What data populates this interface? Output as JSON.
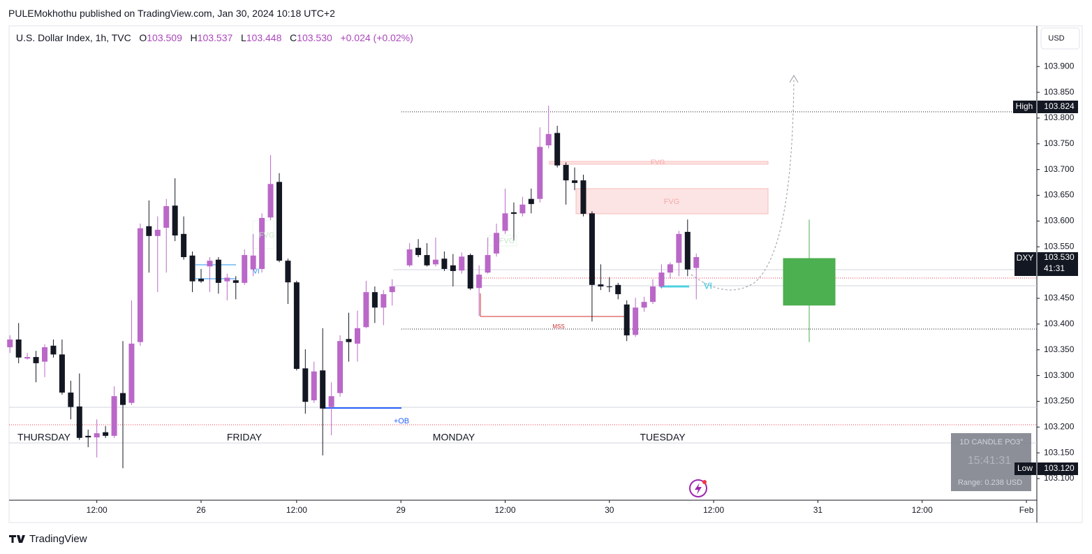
{
  "header": {
    "publisher": "PULEMokhothu published on TradingView.com, Jan 30, 2024 10:18 UTC+2",
    "symbol": "U.S. Dollar Index, 1h, TVC",
    "o_label": "O",
    "o": "103.509",
    "h_label": "H",
    "h": "103.537",
    "l_label": "L",
    "l": "103.448",
    "c_label": "C",
    "c": "103.530",
    "change": "+0.024 (+0.02%)",
    "currency": "USD"
  },
  "chart_data": {
    "type": "candlestick",
    "up_color": "#ba68c8",
    "down_color": "#131722",
    "x": [
      0,
      1,
      2,
      3,
      4,
      5,
      6,
      7,
      8,
      9,
      10,
      11,
      12,
      13,
      14,
      15,
      16,
      17,
      18,
      19,
      20,
      21,
      22,
      23,
      24,
      25,
      26,
      27,
      28,
      29,
      30,
      31,
      32,
      33,
      34,
      35,
      36,
      37,
      38,
      39,
      40,
      41,
      42,
      43,
      44,
      46,
      47,
      48,
      49,
      50,
      51,
      52,
      53,
      54,
      55,
      56,
      57,
      58,
      59,
      60,
      61,
      62,
      63,
      64,
      65,
      66,
      67,
      68,
      69,
      70,
      71,
      72,
      73,
      74,
      75,
      76,
      77,
      78,
      79
    ],
    "open": [
      103.355,
      103.37,
      103.333,
      103.336,
      103.327,
      103.358,
      103.341,
      103.267,
      103.24,
      103.183,
      103.18,
      103.19,
      103.183,
      103.266,
      103.247,
      103.365,
      103.59,
      103.571,
      103.587,
      103.63,
      103.575,
      103.533,
      103.488,
      103.512,
      103.525,
      103.483,
      103.485,
      103.48,
      103.506,
      103.507,
      103.607,
      103.676,
      103.523,
      103.481,
      103.314,
      103.252,
      103.31,
      103.239,
      103.266,
      103.371,
      103.362,
      103.394,
      103.462,
      103.432,
      103.462,
      103.514,
      103.548,
      103.534,
      103.516,
      103.527,
      103.514,
      103.504,
      103.534,
      103.47,
      103.5,
      103.537,
      103.581,
      103.617,
      103.615,
      103.643,
      103.643,
      103.747,
      103.771,
      103.709,
      103.679,
      103.679,
      103.615,
      103.477,
      103.473,
      103.476,
      103.438,
      103.379,
      103.432,
      103.443,
      103.473,
      103.5,
      103.519,
      103.579,
      103.509
    ],
    "high": [
      103.378,
      103.402,
      103.344,
      103.348,
      103.361,
      103.37,
      103.37,
      103.29,
      103.304,
      103.195,
      103.215,
      103.202,
      103.279,
      103.367,
      103.446,
      103.595,
      103.64,
      103.609,
      103.643,
      103.683,
      103.609,
      103.541,
      103.507,
      103.53,
      103.53,
      103.498,
      103.493,
      103.545,
      103.575,
      103.615,
      103.728,
      103.693,
      103.527,
      103.484,
      103.351,
      103.327,
      103.392,
      103.287,
      103.378,
      103.422,
      103.426,
      103.484,
      103.473,
      103.466,
      103.487,
      103.557,
      103.565,
      103.557,
      103.568,
      103.541,
      103.536,
      103.539,
      103.537,
      103.514,
      103.568,
      103.595,
      103.663,
      103.636,
      103.647,
      103.663,
      103.782,
      103.824,
      103.785,
      103.714,
      103.704,
      103.69,
      103.619,
      103.516,
      103.491,
      103.48,
      103.446,
      103.451,
      103.453,
      103.487,
      103.516,
      103.52,
      103.581,
      103.603,
      103.537
    ],
    "low": [
      103.344,
      103.324,
      103.331,
      103.287,
      103.297,
      103.335,
      103.263,
      103.215,
      103.175,
      103.161,
      103.141,
      103.179,
      103.179,
      103.12,
      103.243,
      103.358,
      103.5,
      103.462,
      103.5,
      103.561,
      103.525,
      103.462,
      103.48,
      103.462,
      103.459,
      103.446,
      103.448,
      103.476,
      103.493,
      103.5,
      103.602,
      103.52,
      103.439,
      103.31,
      103.226,
      103.247,
      103.145,
      103.184,
      103.259,
      103.327,
      103.327,
      103.392,
      103.402,
      103.398,
      103.436,
      103.511,
      103.53,
      103.512,
      103.512,
      103.503,
      103.473,
      103.498,
      103.466,
      103.416,
      103.498,
      103.531,
      103.575,
      103.561,
      103.609,
      103.615,
      103.636,
      103.741,
      103.704,
      103.632,
      103.66,
      103.609,
      103.405,
      103.466,
      103.462,
      103.448,
      103.367,
      103.375,
      103.424,
      103.439,
      103.469,
      103.488,
      103.493,
      103.493,
      103.448
    ],
    "close": [
      103.37,
      103.335,
      103.336,
      103.324,
      103.355,
      103.341,
      103.267,
      103.239,
      103.179,
      103.18,
      103.188,
      103.183,
      103.26,
      103.243,
      103.362,
      103.586,
      103.571,
      103.583,
      103.629,
      103.572,
      103.53,
      103.483,
      103.483,
      103.523,
      103.48,
      103.49,
      103.48,
      103.534,
      103.533,
      103.606,
      103.672,
      103.523,
      103.481,
      103.313,
      103.249,
      103.308,
      103.236,
      103.26,
      103.367,
      103.365,
      103.392,
      103.462,
      103.432,
      103.458,
      103.473,
      103.545,
      103.534,
      103.514,
      103.525,
      103.507,
      103.503,
      103.531,
      103.469,
      103.496,
      103.534,
      103.577,
      103.615,
      103.614,
      103.632,
      103.633,
      103.744,
      103.769,
      103.708,
      103.679,
      103.674,
      103.614,
      103.476,
      103.473,
      103.472,
      103.458,
      103.378,
      103.432,
      103.443,
      103.473,
      103.5,
      103.516,
      103.575,
      103.506,
      103.53
    ],
    "projection": {
      "x": 92,
      "open": 103.436,
      "high": 103.603,
      "low": 103.365,
      "close": 103.528,
      "color": "#4caf50"
    },
    "xlim": [
      -0.1,
      118.2
    ],
    "xticks": [
      {
        "value": 10,
        "label": "12:00"
      },
      {
        "value": 22,
        "label": "26"
      },
      {
        "value": 33,
        "label": "12:00"
      },
      {
        "value": 45,
        "label": "29"
      },
      {
        "value": 57,
        "label": "12:00"
      },
      {
        "value": 69,
        "label": "30"
      },
      {
        "value": 81,
        "label": "12:00"
      },
      {
        "value": 93,
        "label": "31"
      },
      {
        "value": 105,
        "label": "12:00"
      },
      {
        "value": 117,
        "label": "Feb"
      }
    ],
    "ylim": [
      103.058,
      103.979
    ],
    "yticks": [
      {
        "value": 103.1,
        "label": "103.100"
      },
      {
        "value": 103.15,
        "label": "103.150"
      },
      {
        "value": 103.2,
        "label": "103.200"
      },
      {
        "value": 103.25,
        "label": "103.250"
      },
      {
        "value": 103.3,
        "label": "103.300"
      },
      {
        "value": 103.35,
        "label": "103.350"
      },
      {
        "value": 103.4,
        "label": "103.400"
      },
      {
        "value": 103.45,
        "label": "103.450"
      },
      {
        "value": 103.5,
        "label": "103.500"
      },
      {
        "value": 103.55,
        "label": "103.550"
      },
      {
        "value": 103.6,
        "label": "103.600"
      },
      {
        "value": 103.65,
        "label": "103.650"
      },
      {
        "value": 103.7,
        "label": "103.700"
      },
      {
        "value": 103.75,
        "label": "103.750"
      },
      {
        "value": 103.8,
        "label": "103.800"
      },
      {
        "value": 103.85,
        "label": "103.850"
      },
      {
        "value": 103.9,
        "label": "103.900"
      }
    ],
    "days": [
      "THURSDAY",
      "FRIDAY",
      "MONDAY",
      "TUESDAY"
    ],
    "annotations": {
      "fvg_top": "FVG",
      "fvg_mid": "FVG",
      "fvg_left": "FVG",
      "fvg_center": "FVG",
      "mss": "MSS",
      "ob": "+OB",
      "vi": "VI",
      "vi_left": "VI"
    },
    "tags": {
      "high_label": "High",
      "high": "103.824",
      "dxy_label": "DXY",
      "dxy": "103.530",
      "countdown": "41:31",
      "low_label": "Low",
      "low": "103.120"
    },
    "widget": {
      "title": "1D CANDLE PO3°",
      "timer": "15:41:31",
      "range": "Range: 0.238 USD"
    }
  },
  "footer": {
    "brand": "TradingView"
  }
}
